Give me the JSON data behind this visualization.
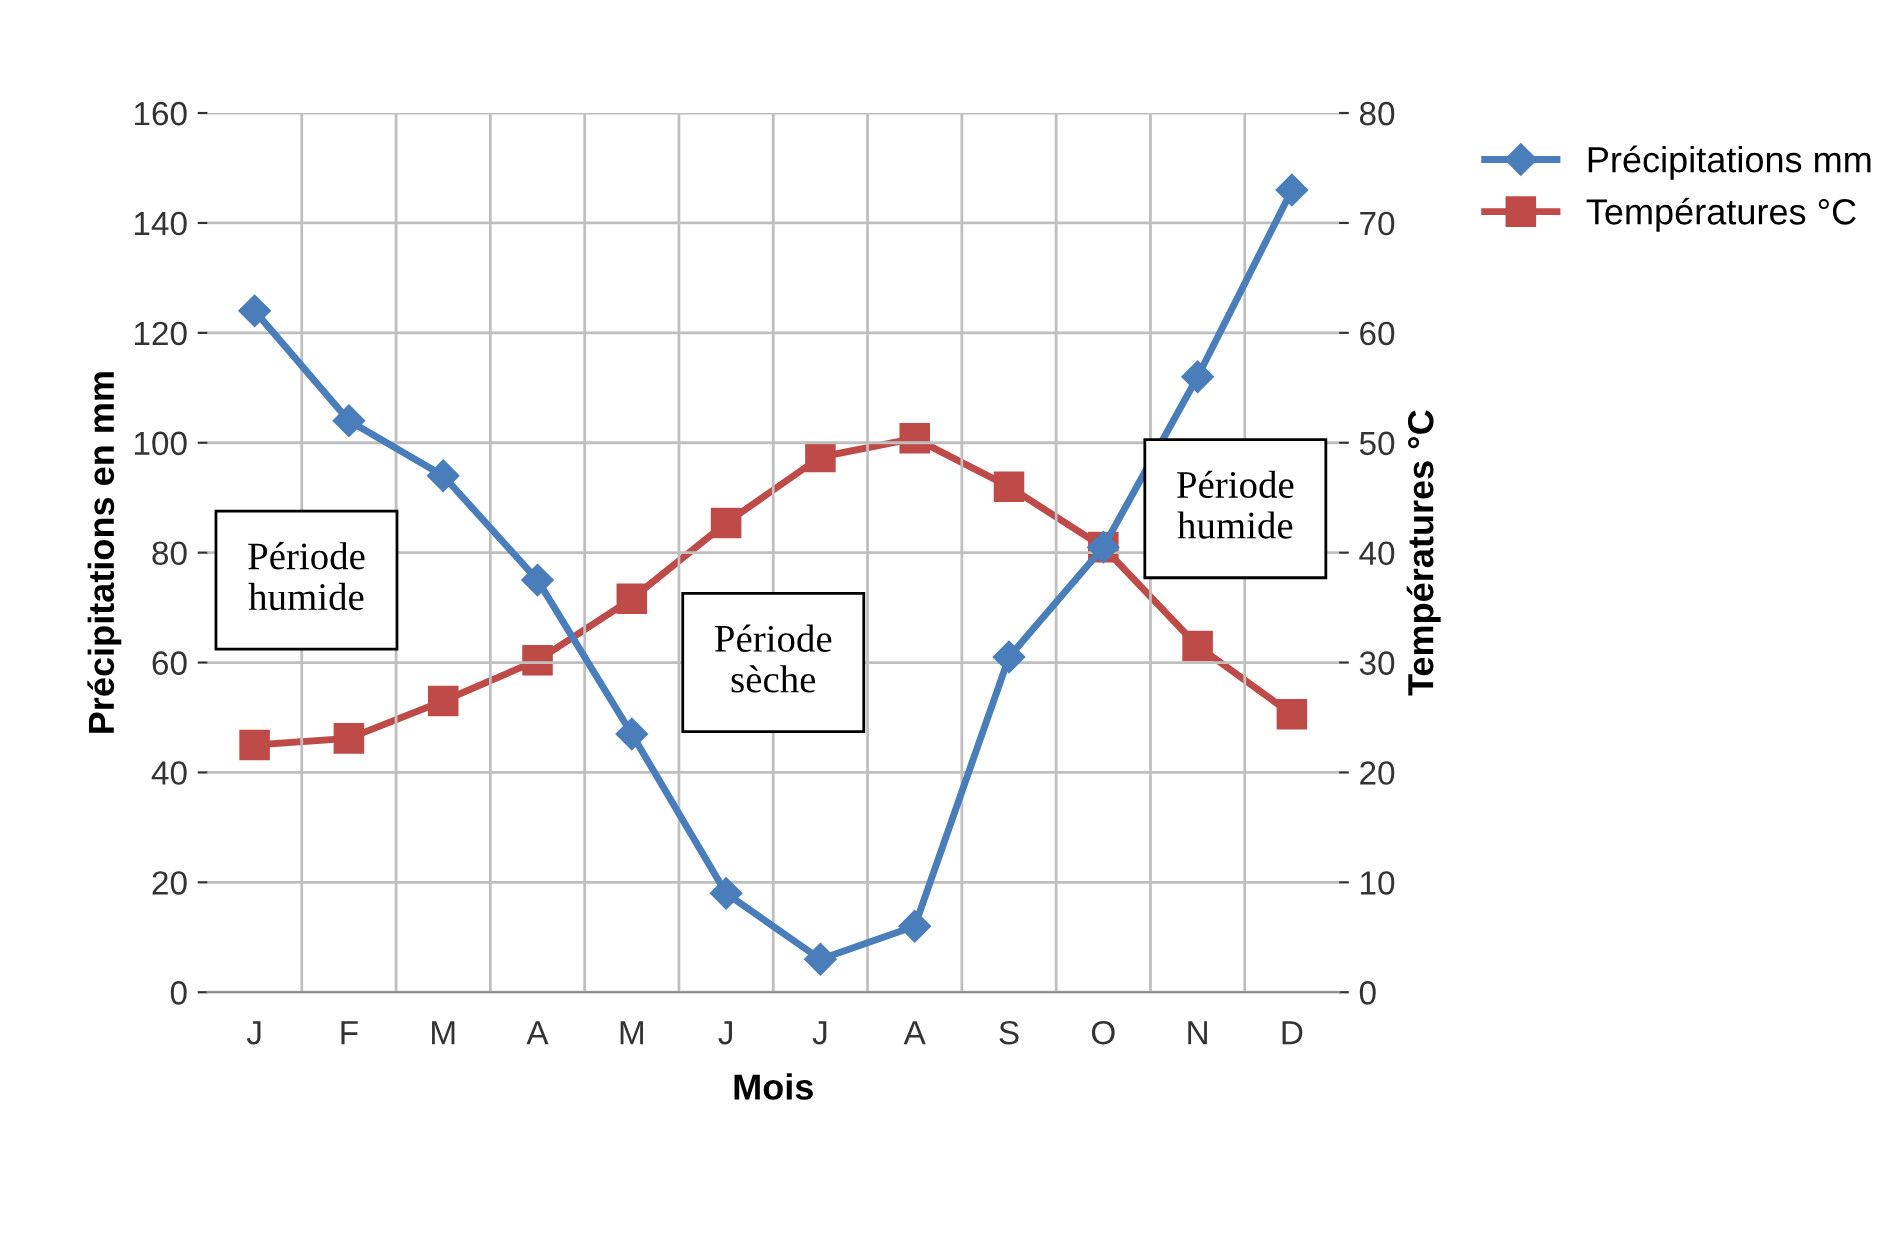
{
  "chart_data": {
    "type": "line",
    "xlabel": "Mois",
    "ylabel": "Précipitations en mm",
    "y2label": "Températures °C",
    "categories": [
      "J",
      "F",
      "M",
      "A",
      "M",
      "J",
      "J",
      "A",
      "S",
      "O",
      "N",
      "D"
    ],
    "series": [
      {
        "name": "Précipitations mm",
        "color": "#4a7ebb",
        "marker": "diamond",
        "values": [
          124,
          104,
          94,
          75,
          47,
          18,
          6,
          12,
          61,
          81,
          112,
          146
        ]
      },
      {
        "name": "Températures °C",
        "color": "#be4b48",
        "marker": "square",
        "axis": "y2",
        "values": [
          22.5,
          23.1,
          26.5,
          30.2,
          35.8,
          42.7,
          48.7,
          50.4,
          46,
          40.5,
          31.5,
          25.3
        ]
      }
    ],
    "ylim": [
      0,
      160
    ],
    "yticks": [
      0,
      20,
      40,
      60,
      80,
      100,
      120,
      140,
      160
    ],
    "y2lim": [
      0,
      80
    ],
    "y2ticks": [
      0,
      10,
      20,
      30,
      40,
      50,
      60,
      70,
      80
    ],
    "grid": true,
    "legend": "top right",
    "line_style": "solid",
    "annotations": [
      "Période\nhumide",
      "Période\nsèche",
      "Période\nhumide"
    ]
  }
}
